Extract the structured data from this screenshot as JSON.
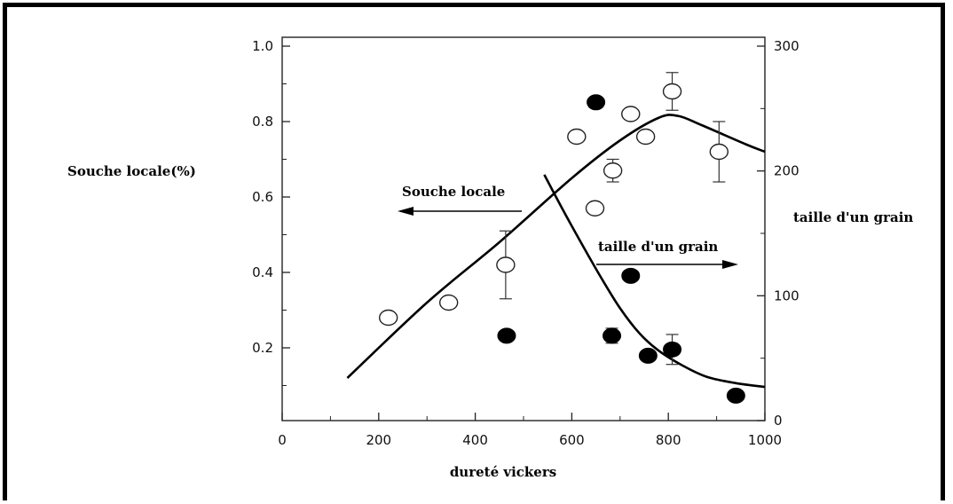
{
  "chart_data": {
    "type": "scatter",
    "xlabel": "dureté vickers",
    "ylabel_left": "Souche locale(%)",
    "ylabel_right": "taille d'un grain",
    "xlim": [
      0,
      1000
    ],
    "ylim_left": [
      0,
      1.0
    ],
    "ylim_right": [
      0,
      300
    ],
    "x_ticks": [
      "0",
      "200",
      "400",
      "600",
      "800",
      "1000"
    ],
    "y_left_ticks": [
      "0.2",
      "0.4",
      "0.6",
      "0.8",
      "1.0"
    ],
    "y_right_ticks": [
      "0",
      "100",
      "200",
      "300"
    ],
    "annotations": {
      "souche": "Souche locale",
      "grain": "taille d'un grain"
    },
    "series": [
      {
        "marker": "open-circle",
        "axis": "left",
        "points": [
          {
            "x": 220,
            "y": 0.28
          },
          {
            "x": 345,
            "y": 0.32
          },
          {
            "x": 463,
            "y": 0.42,
            "err": 0.09
          },
          {
            "x": 610,
            "y": 0.76
          },
          {
            "x": 648,
            "y": 0.57
          },
          {
            "x": 685,
            "y": 0.67,
            "err": 0.03
          },
          {
            "x": 722,
            "y": 0.82
          },
          {
            "x": 753,
            "y": 0.76
          },
          {
            "x": 808,
            "y": 0.88,
            "err": 0.05
          },
          {
            "x": 905,
            "y": 0.72,
            "err": 0.08
          }
        ]
      },
      {
        "marker": "filled-circle",
        "axis": "right",
        "points": [
          {
            "x": 465,
            "y": 68
          },
          {
            "x": 650,
            "y": 255
          },
          {
            "x": 683,
            "y": 68,
            "err": 6
          },
          {
            "x": 722,
            "y": 116
          },
          {
            "x": 758,
            "y": 52
          },
          {
            "x": 808,
            "y": 57,
            "err": 12
          },
          {
            "x": 940,
            "y": 20
          }
        ]
      }
    ],
    "curves": [
      {
        "name": "souche-fit",
        "axis": "left",
        "points": [
          [
            135,
            0.12
          ],
          [
            300,
            0.32
          ],
          [
            450,
            0.48
          ],
          [
            600,
            0.65
          ],
          [
            700,
            0.75
          ],
          [
            780,
            0.81
          ],
          [
            820,
            0.815
          ],
          [
            870,
            0.79
          ],
          [
            960,
            0.74
          ],
          [
            1000,
            0.72
          ]
        ]
      },
      {
        "name": "grain-fit",
        "axis": "right",
        "points": [
          [
            543,
            197
          ],
          [
            580,
            170
          ],
          [
            620,
            142
          ],
          [
            660,
            115
          ],
          [
            700,
            90
          ],
          [
            740,
            70
          ],
          [
            780,
            56
          ],
          [
            830,
            44
          ],
          [
            880,
            35
          ],
          [
            940,
            30
          ],
          [
            1000,
            27
          ]
        ]
      }
    ]
  }
}
